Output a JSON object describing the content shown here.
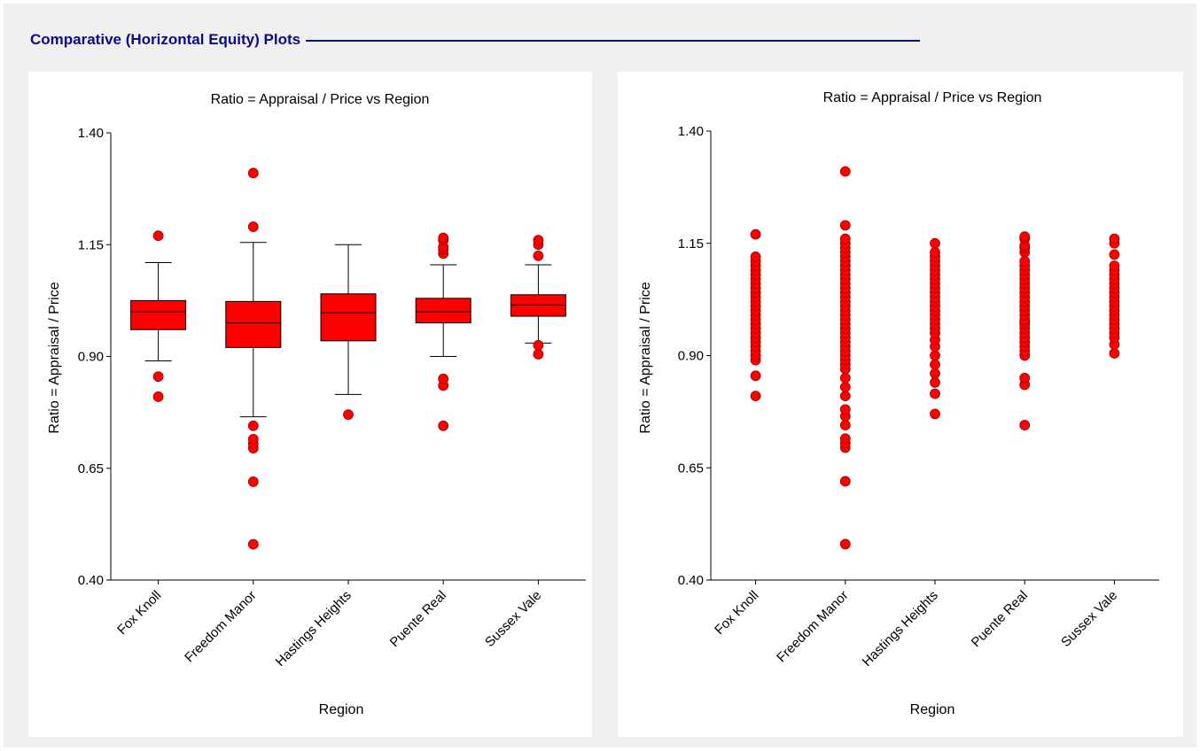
{
  "section": {
    "title": "Comparative (Horizontal Equity) Plots"
  },
  "colors": {
    "accent": "#0a0a8c",
    "marker": "#ff0000",
    "box_fill": "#ff0000",
    "background": "#f0f0f0"
  },
  "chart_data": [
    {
      "type": "box",
      "title": "Ratio = Appraisal / Price vs Region",
      "xlabel": "Region",
      "ylabel": "Ratio = Appraisal / Price",
      "ylim": [
        0.4,
        1.4
      ],
      "yticks": [
        "0.40",
        "0.65",
        "0.90",
        "1.15",
        "1.40"
      ],
      "categories": [
        "Fox Knoll",
        "Freedom Manor",
        "Hastings Heights",
        "Puente Real",
        "Sussex Vale"
      ],
      "boxes": [
        {
          "whisker_low": 0.89,
          "q1": 0.96,
          "median": 1.0,
          "q3": 1.025,
          "whisker_high": 1.11,
          "outliers": [
            0.81,
            0.855,
            1.17
          ]
        },
        {
          "whisker_low": 0.765,
          "q1": 0.92,
          "median": 0.975,
          "q3": 1.023,
          "whisker_high": 1.155,
          "outliers": [
            0.48,
            0.62,
            0.695,
            0.705,
            0.715,
            0.745,
            1.19,
            1.31
          ]
        },
        {
          "whisker_low": 0.815,
          "q1": 0.935,
          "median": 0.998,
          "q3": 1.04,
          "whisker_high": 1.15,
          "outliers": [
            0.77
          ]
        },
        {
          "whisker_low": 0.9,
          "q1": 0.975,
          "median": 1.0,
          "q3": 1.03,
          "whisker_high": 1.105,
          "outliers": [
            0.745,
            0.835,
            0.85,
            1.13,
            1.14,
            1.145,
            1.16,
            1.165
          ]
        },
        {
          "whisker_low": 0.93,
          "q1": 0.99,
          "median": 1.015,
          "q3": 1.038,
          "whisker_high": 1.105,
          "outliers": [
            0.905,
            0.925,
            1.125,
            1.15,
            1.16
          ]
        }
      ]
    },
    {
      "type": "scatter",
      "title": "Ratio = Appraisal / Price vs Region",
      "xlabel": "Region",
      "ylabel": "Ratio = Appraisal / Price",
      "ylim": [
        0.4,
        1.4
      ],
      "yticks": [
        "0.40",
        "0.65",
        "0.90",
        "1.15",
        "1.40"
      ],
      "categories": [
        "Fox Knoll",
        "Freedom Manor",
        "Hastings Heights",
        "Puente Real",
        "Sussex Vale"
      ],
      "series": [
        {
          "values": [
            0.81,
            0.855,
            0.89,
            0.9,
            0.91,
            0.92,
            0.93,
            0.94,
            0.95,
            0.96,
            0.97,
            0.98,
            0.99,
            1.0,
            1.01,
            1.02,
            1.03,
            1.04,
            1.05,
            1.06,
            1.07,
            1.08,
            1.09,
            1.1,
            1.11,
            1.12,
            1.17
          ]
        },
        {
          "values": [
            0.48,
            0.62,
            0.695,
            0.705,
            0.715,
            0.745,
            0.765,
            0.78,
            0.81,
            0.83,
            0.85,
            0.87,
            0.88,
            0.89,
            0.9,
            0.91,
            0.92,
            0.93,
            0.94,
            0.95,
            0.96,
            0.97,
            0.98,
            0.99,
            1.0,
            1.01,
            1.02,
            1.03,
            1.04,
            1.05,
            1.06,
            1.07,
            1.08,
            1.09,
            1.1,
            1.11,
            1.12,
            1.13,
            1.14,
            1.15,
            1.16,
            1.19,
            1.31
          ]
        },
        {
          "values": [
            0.77,
            0.815,
            0.84,
            0.86,
            0.88,
            0.9,
            0.92,
            0.935,
            0.95,
            0.96,
            0.97,
            0.98,
            0.99,
            1.0,
            1.01,
            1.02,
            1.03,
            1.04,
            1.05,
            1.06,
            1.07,
            1.08,
            1.09,
            1.1,
            1.11,
            1.12,
            1.13,
            1.15
          ]
        },
        {
          "values": [
            0.745,
            0.835,
            0.85,
            0.9,
            0.91,
            0.92,
            0.93,
            0.94,
            0.95,
            0.96,
            0.97,
            0.975,
            0.98,
            0.99,
            1.0,
            1.01,
            1.02,
            1.03,
            1.04,
            1.05,
            1.06,
            1.07,
            1.08,
            1.09,
            1.1,
            1.11,
            1.13,
            1.14,
            1.145,
            1.16,
            1.165
          ]
        },
        {
          "values": [
            0.905,
            0.925,
            0.94,
            0.95,
            0.96,
            0.97,
            0.98,
            0.99,
            1.0,
            1.01,
            1.02,
            1.03,
            1.04,
            1.05,
            1.06,
            1.07,
            1.08,
            1.09,
            1.1,
            1.125,
            1.15,
            1.16
          ]
        }
      ]
    }
  ]
}
